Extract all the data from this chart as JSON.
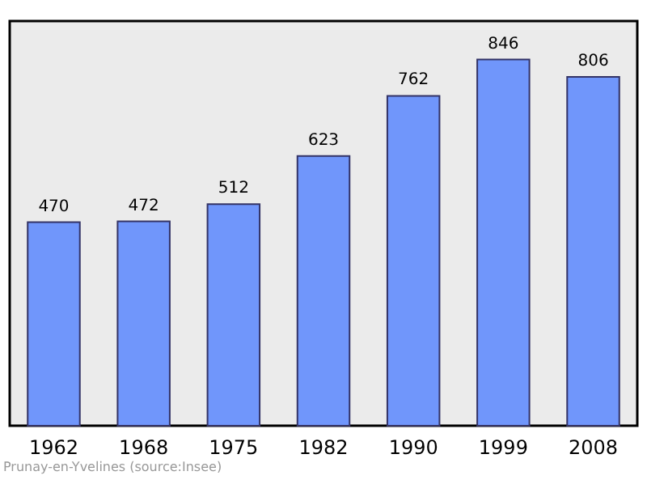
{
  "chart_data": {
    "type": "bar",
    "categories": [
      "1962",
      "1968",
      "1975",
      "1982",
      "1990",
      "1999",
      "2008"
    ],
    "values": [
      470,
      472,
      512,
      623,
      762,
      846,
      806
    ],
    "color": "#7096fb",
    "data_labels": true,
    "tick_labels": "x",
    "grid": false,
    "annotations": [
      "Prunay-en-Yvelines    (source:Insee)"
    ]
  }
}
